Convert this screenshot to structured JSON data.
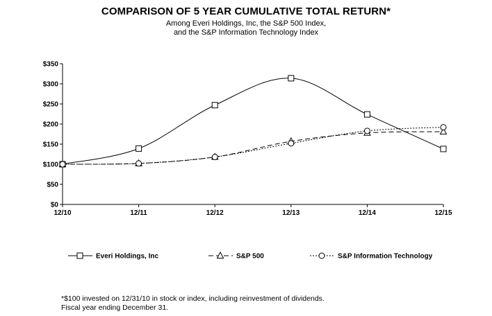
{
  "chart_data": {
    "type": "line",
    "title": "COMPARISON OF 5 YEAR CUMULATIVE TOTAL RETURN*",
    "subtitle_lines": [
      "Among Everi Holdings, Inc, the S&P 500 Index,",
      "and the S&P Information Technology Index"
    ],
    "categories": [
      "12/10",
      "12/11",
      "12/12",
      "12/13",
      "12/14",
      "12/15"
    ],
    "y_ticks": [
      "$0",
      "$50",
      "$100",
      "$150",
      "$200",
      "$250",
      "$300",
      "$350"
    ],
    "ylim": [
      0,
      350
    ],
    "grid": false,
    "legend_position": "bottom",
    "series": [
      {
        "name": "Everi Holdings, Inc",
        "values": [
          100,
          139,
          247,
          314,
          224,
          138
        ],
        "marker": "square",
        "line_style": "solid",
        "color": "#000000"
      },
      {
        "name": "S&P 500",
        "values": [
          100,
          102,
          118,
          157,
          178,
          181
        ],
        "marker": "triangle",
        "line_style": "dashed",
        "color": "#000000"
      },
      {
        "name": "S&P Information Technology",
        "values": [
          100,
          102,
          118,
          152,
          183,
          192
        ],
        "marker": "circle",
        "line_style": "dotted",
        "color": "#000000"
      }
    ]
  },
  "footnote_lines": [
    "*$100 invested on 12/31/10 in stock or index, including reinvestment of dividends.",
    "Fiscal year ending December 31."
  ]
}
